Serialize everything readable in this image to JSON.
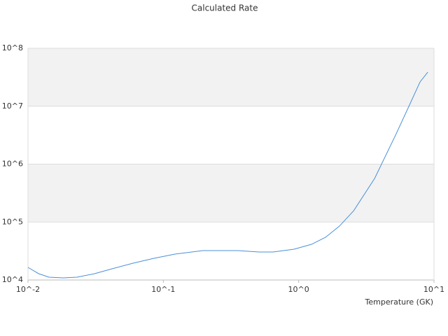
{
  "chart_data": {
    "type": "line",
    "title": "Calculated Rate",
    "xlabel": "Temperature (GK)",
    "xscale": "log",
    "yscale": "log",
    "grid": true,
    "band_color": "#f2f2f2",
    "x": [
      0.01,
      0.012,
      0.0143,
      0.0182,
      0.023,
      0.031,
      0.0418,
      0.0597,
      0.0853,
      0.122,
      0.196,
      0.356,
      0.509,
      0.647,
      0.925,
      1.245,
      1.58,
      2.0,
      2.55,
      3.64,
      5.2,
      6.59,
      7.89,
      9.0
    ],
    "series": [
      {
        "name": "Calculated Rate",
        "color": "#4a90d9",
        "values": [
          16500,
          12850,
          11170,
          10870,
          11170,
          12850,
          15600,
          19500,
          23700,
          28000,
          32200,
          32200,
          30400,
          30400,
          34000,
          41300,
          54600,
          85100,
          157000,
          565000,
          3170000,
          10500000,
          26300000,
          38800000
        ]
      }
    ],
    "xlim": [
      0.01,
      10
    ],
    "xticks": [
      {
        "value": 0.01,
        "label": "10^-2"
      },
      {
        "value": 0.1,
        "label": "10^-1"
      },
      {
        "value": 1,
        "label": "10^0"
      },
      {
        "value": 10,
        "label": "10^1"
      }
    ],
    "ylim": [
      10000,
      100000000
    ],
    "yticks": [
      {
        "value": 10000,
        "label": "10^4"
      },
      {
        "value": 100000,
        "label": "10^5"
      },
      {
        "value": 1000000,
        "label": "10^6"
      },
      {
        "value": 10000000,
        "label": "10^7"
      },
      {
        "value": 100000000,
        "label": "10^8"
      }
    ]
  }
}
